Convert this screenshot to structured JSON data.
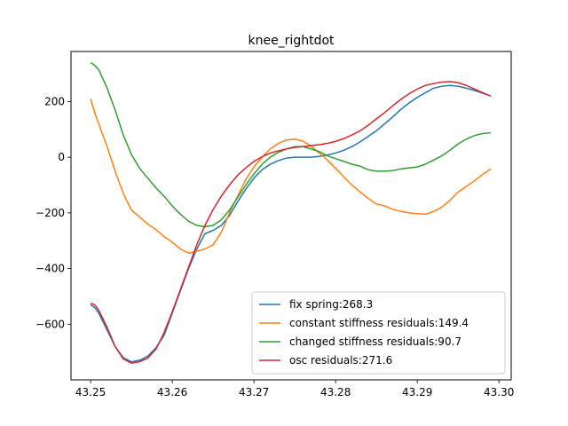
{
  "chart_data": {
    "type": "line",
    "title": "knee_rightdot",
    "xlabel": "",
    "ylabel": "",
    "xlim": [
      43.2476,
      43.3015
    ],
    "ylim": [
      -800,
      380
    ],
    "xticks": [
      43.25,
      43.26,
      43.27,
      43.28,
      43.29,
      43.3
    ],
    "xtick_labels": [
      "43.25",
      "43.26",
      "43.27",
      "43.28",
      "43.29",
      "43.30"
    ],
    "yticks": [
      -600,
      -400,
      -200,
      0,
      200
    ],
    "ytick_labels": [
      "−600",
      "−400",
      "−200",
      "0",
      "200"
    ],
    "grid": false,
    "legend_position": "lower-right",
    "series": [
      {
        "name": "fix spring:268.3",
        "color": "#1f77b4",
        "points": [
          [
            43.25,
            -530
          ],
          [
            43.2505,
            -540
          ],
          [
            43.251,
            -560
          ],
          [
            43.252,
            -620
          ],
          [
            43.253,
            -680
          ],
          [
            43.254,
            -720
          ],
          [
            43.255,
            -735
          ],
          [
            43.256,
            -730
          ],
          [
            43.257,
            -715
          ],
          [
            43.258,
            -685
          ],
          [
            43.259,
            -640
          ],
          [
            43.26,
            -560
          ],
          [
            43.261,
            -480
          ],
          [
            43.262,
            -400
          ],
          [
            43.263,
            -330
          ],
          [
            43.264,
            -275
          ],
          [
            43.265,
            -263
          ],
          [
            43.266,
            -245
          ],
          [
            43.267,
            -210
          ],
          [
            43.268,
            -160
          ],
          [
            43.269,
            -115
          ],
          [
            43.27,
            -75
          ],
          [
            43.271,
            -45
          ],
          [
            43.272,
            -25
          ],
          [
            43.273,
            -12
          ],
          [
            43.274,
            -3
          ],
          [
            43.275,
            0
          ],
          [
            43.276,
            0
          ],
          [
            43.277,
            0
          ],
          [
            43.278,
            3
          ],
          [
            43.279,
            8
          ],
          [
            43.28,
            15
          ],
          [
            43.281,
            25
          ],
          [
            43.282,
            38
          ],
          [
            43.283,
            55
          ],
          [
            43.284,
            75
          ],
          [
            43.285,
            95
          ],
          [
            43.286,
            120
          ],
          [
            43.287,
            145
          ],
          [
            43.288,
            172
          ],
          [
            43.289,
            195
          ],
          [
            43.29,
            215
          ],
          [
            43.291,
            232
          ],
          [
            43.292,
            248
          ],
          [
            43.293,
            255
          ],
          [
            43.294,
            258
          ],
          [
            43.295,
            255
          ],
          [
            43.296,
            248
          ],
          [
            43.297,
            240
          ],
          [
            43.298,
            230
          ],
          [
            43.299,
            220
          ]
        ]
      },
      {
        "name": "constant stiffness residuals:149.4",
        "color": "#ff7f0e",
        "points": [
          [
            43.25,
            210
          ],
          [
            43.2505,
            160
          ],
          [
            43.251,
            120
          ],
          [
            43.252,
            40
          ],
          [
            43.253,
            -50
          ],
          [
            43.254,
            -130
          ],
          [
            43.255,
            -190
          ],
          [
            43.256,
            -215
          ],
          [
            43.257,
            -240
          ],
          [
            43.258,
            -260
          ],
          [
            43.259,
            -285
          ],
          [
            43.26,
            -305
          ],
          [
            43.261,
            -330
          ],
          [
            43.262,
            -345
          ],
          [
            43.263,
            -338
          ],
          [
            43.264,
            -330
          ],
          [
            43.265,
            -315
          ],
          [
            43.266,
            -270
          ],
          [
            43.267,
            -200
          ],
          [
            43.268,
            -140
          ],
          [
            43.269,
            -80
          ],
          [
            43.27,
            -35
          ],
          [
            43.271,
            0
          ],
          [
            43.272,
            30
          ],
          [
            43.273,
            50
          ],
          [
            43.274,
            62
          ],
          [
            43.275,
            65
          ],
          [
            43.276,
            58
          ],
          [
            43.277,
            40
          ],
          [
            43.278,
            15
          ],
          [
            43.279,
            -10
          ],
          [
            43.28,
            -40
          ],
          [
            43.281,
            -70
          ],
          [
            43.282,
            -100
          ],
          [
            43.283,
            -125
          ],
          [
            43.284,
            -148
          ],
          [
            43.285,
            -168
          ],
          [
            43.286,
            -175
          ],
          [
            43.287,
            -187
          ],
          [
            43.288,
            -195
          ],
          [
            43.289,
            -200
          ],
          [
            43.29,
            -203
          ],
          [
            43.291,
            -205
          ],
          [
            43.292,
            -195
          ],
          [
            43.293,
            -180
          ],
          [
            43.294,
            -155
          ],
          [
            43.295,
            -125
          ],
          [
            43.296,
            -105
          ],
          [
            43.297,
            -85
          ],
          [
            43.298,
            -62
          ],
          [
            43.299,
            -42
          ]
        ]
      },
      {
        "name": "changed stiffness residuals:90.7",
        "color": "#2ca02c",
        "points": [
          [
            43.25,
            340
          ],
          [
            43.2505,
            330
          ],
          [
            43.251,
            315
          ],
          [
            43.252,
            250
          ],
          [
            43.253,
            170
          ],
          [
            43.254,
            80
          ],
          [
            43.255,
            10
          ],
          [
            43.256,
            -40
          ],
          [
            43.257,
            -75
          ],
          [
            43.258,
            -110
          ],
          [
            43.259,
            -140
          ],
          [
            43.26,
            -175
          ],
          [
            43.261,
            -205
          ],
          [
            43.262,
            -230
          ],
          [
            43.263,
            -245
          ],
          [
            43.264,
            -250
          ],
          [
            43.265,
            -245
          ],
          [
            43.266,
            -225
          ],
          [
            43.267,
            -190
          ],
          [
            43.268,
            -145
          ],
          [
            43.269,
            -100
          ],
          [
            43.27,
            -60
          ],
          [
            43.271,
            -25
          ],
          [
            43.272,
            0
          ],
          [
            43.273,
            18
          ],
          [
            43.274,
            30
          ],
          [
            43.275,
            38
          ],
          [
            43.276,
            38
          ],
          [
            43.277,
            30
          ],
          [
            43.278,
            20
          ],
          [
            43.279,
            5
          ],
          [
            43.28,
            -5
          ],
          [
            43.281,
            -15
          ],
          [
            43.282,
            -25
          ],
          [
            43.283,
            -32
          ],
          [
            43.284,
            -45
          ],
          [
            43.285,
            -50
          ],
          [
            43.286,
            -50
          ],
          [
            43.287,
            -48
          ],
          [
            43.288,
            -42
          ],
          [
            43.289,
            -38
          ],
          [
            43.29,
            -35
          ],
          [
            43.291,
            -25
          ],
          [
            43.292,
            -10
          ],
          [
            43.293,
            5
          ],
          [
            43.294,
            25
          ],
          [
            43.295,
            48
          ],
          [
            43.296,
            65
          ],
          [
            43.297,
            78
          ],
          [
            43.298,
            85
          ],
          [
            43.299,
            88
          ]
        ]
      },
      {
        "name": "osc residuals:271.6",
        "color": "#d62728",
        "points": [
          [
            43.25,
            -525
          ],
          [
            43.2505,
            -530
          ],
          [
            43.251,
            -550
          ],
          [
            43.252,
            -610
          ],
          [
            43.253,
            -680
          ],
          [
            43.254,
            -725
          ],
          [
            43.255,
            -740
          ],
          [
            43.256,
            -735
          ],
          [
            43.257,
            -722
          ],
          [
            43.258,
            -690
          ],
          [
            43.259,
            -630
          ],
          [
            43.26,
            -555
          ],
          [
            43.261,
            -475
          ],
          [
            43.262,
            -395
          ],
          [
            43.263,
            -315
          ],
          [
            43.264,
            -245
          ],
          [
            43.265,
            -188
          ],
          [
            43.266,
            -140
          ],
          [
            43.267,
            -100
          ],
          [
            43.268,
            -65
          ],
          [
            43.269,
            -38
          ],
          [
            43.27,
            -15
          ],
          [
            43.271,
            2
          ],
          [
            43.272,
            15
          ],
          [
            43.273,
            23
          ],
          [
            43.274,
            30
          ],
          [
            43.275,
            35
          ],
          [
            43.276,
            38
          ],
          [
            43.277,
            42
          ],
          [
            43.278,
            45
          ],
          [
            43.279,
            50
          ],
          [
            43.28,
            57
          ],
          [
            43.281,
            67
          ],
          [
            43.282,
            80
          ],
          [
            43.283,
            95
          ],
          [
            43.284,
            115
          ],
          [
            43.285,
            138
          ],
          [
            43.286,
            160
          ],
          [
            43.287,
            185
          ],
          [
            43.288,
            208
          ],
          [
            43.289,
            228
          ],
          [
            43.29,
            245
          ],
          [
            43.291,
            258
          ],
          [
            43.292,
            265
          ],
          [
            43.293,
            270
          ],
          [
            43.294,
            272
          ],
          [
            43.295,
            268
          ],
          [
            43.296,
            258
          ],
          [
            43.297,
            245
          ],
          [
            43.298,
            232
          ],
          [
            43.299,
            220
          ]
        ]
      }
    ]
  }
}
